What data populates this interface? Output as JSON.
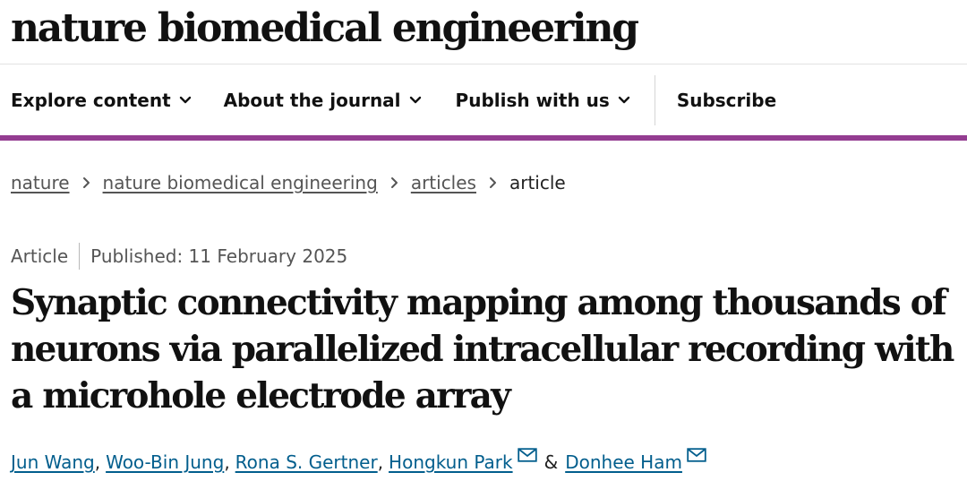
{
  "site": {
    "masthead": "nature biomedical engineering"
  },
  "nav": {
    "items": [
      {
        "label": "Explore content",
        "icon": "chevron-down-icon"
      },
      {
        "label": "About the journal",
        "icon": "chevron-down-icon"
      },
      {
        "label": "Publish with us",
        "icon": "chevron-down-icon"
      }
    ],
    "subscribe": "Subscribe",
    "accent_color": "#943d91"
  },
  "breadcrumb": {
    "items": [
      "nature",
      "nature biomedical engineering",
      "articles"
    ],
    "current": "article"
  },
  "article": {
    "type": "Article",
    "published": "Published: 11 February 2025",
    "title": "Synaptic connectivity mapping among thousands of neurons via parallelized intracellular recording with a microhole electrode array",
    "authors": [
      "Jun Wang",
      "Woo-Bin Jung",
      "Rona S. Gertner",
      "Hongkun Park",
      "Donhee Ham"
    ],
    "ampersand": "&",
    "link_color": "#025e8d"
  }
}
